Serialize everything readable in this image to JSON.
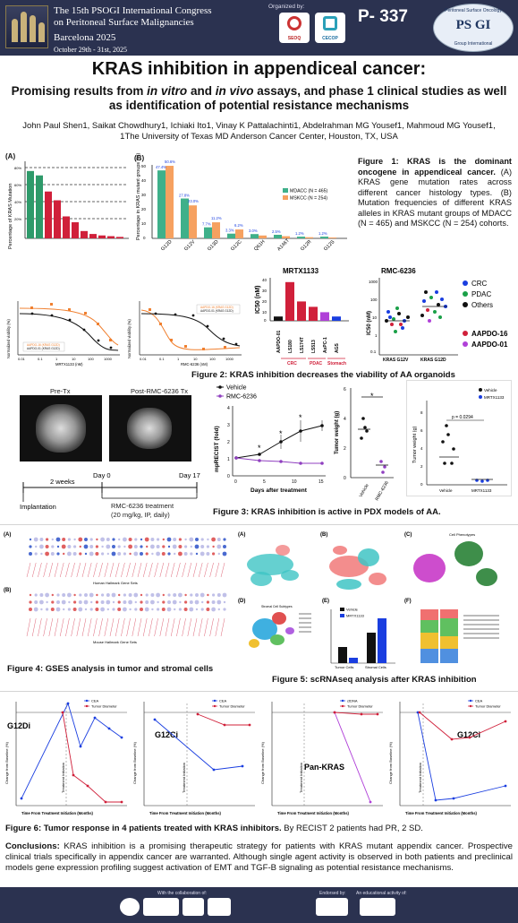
{
  "header": {
    "congress_line1": "The 15th PSOGI International Congress",
    "congress_line2": "on Peritoneal Surface Malignancies",
    "city": "Barcelona 2025",
    "dates": "October 29th - 31st, 2025",
    "organized_by": "Organized by:",
    "org1": "SEOQ",
    "org2": "CECOP",
    "poster_number": "P- 337",
    "psogi_top": "Peritoneal Surface Oncology",
    "psogi_big": "PS GI",
    "psogi_bottom": "Group International"
  },
  "title": "KRAS inhibition in appendiceal cancer:",
  "subtitle": "Promising results from in vitro and in vivo assays, and phase 1 clinical studies as well as identification of potential resistance mechanisms",
  "authors": "John Paul Shen1, Saikat Chowdhury1, Ichiaki Ito1, Vinay K Pattalachinti1, Abdelrahman MG Yousef1, Mahmoud MG Yousef1,",
  "affiliation": "1The University of Texas MD Anderson Cancer Center, Houston, TX, USA",
  "fig1": {
    "panel_a": "(A)",
    "panel_b": "(B)",
    "ylabel_a": "Percentage of KRAS Mutation",
    "ylabel_b": "Percentage in KRAS mutant groups (%)",
    "legend_mdacc": "MDACC (N = 465)",
    "legend_mskcc": "MSKCC (N = 254)",
    "alleles": [
      "G12D",
      "G12V",
      "G13D",
      "G12C",
      "Q61H",
      "A146T",
      "G12R",
      "G12S"
    ],
    "labels_mdacc": [
      "47.4%",
      "27.8%",
      "7.7%",
      "3.3%",
      "3.0%",
      "2.5%",
      "1.2%",
      "1.2%"
    ],
    "labels_mskcc": [
      "50.6%",
      "23.0%",
      "11.2%",
      "6.2%",
      "",
      "",
      "",
      ""
    ],
    "caption_bold": "Figure 1: KRAS is the dominant oncogene in appendiceal cancer.",
    "caption_text": "(A) KRAS gene mutation rates across different cancer histology types. (B) Mutation frequencies of different KRAS alleles in KRAS mutant groups of MDACC (N = 465) and MSKCC (N = 254) cohorts."
  },
  "fig2": {
    "mrtx_title": "MRTX1133",
    "rmc_title": "RMC-6236",
    "ic50_ylabel": "IC50 (nM)",
    "ic50_mrtx_lines": [
      "AAPDO-01",
      "LS180",
      "LS174T",
      "LS513",
      "AsPC-1",
      "AGS"
    ],
    "ic50_groups": [
      "CRC",
      "PDAC",
      "Stomach"
    ],
    "rmc_xlabels": [
      "KRAS G12V",
      "KRAS G12D"
    ],
    "legend_crc": "CRC",
    "legend_pdac": "PDAC",
    "legend_others": "Others",
    "legend_aapdo16": "AAPDO-16",
    "legend_aapdo01": "AAPDO-01",
    "curve_xlabel_1": "MRTX1133 (nM)",
    "curve_xlabel_2": "RMC-6236 (nM)",
    "curve_ylabel": "Normalized viability (%)",
    "caption": "Figure 2: KRAS inhibition decreases the viability of AA organoids"
  },
  "fig3": {
    "pre": "Pre-Tx",
    "post": "Post-RMC-6236 Tx",
    "two_weeks": "2 weeks",
    "day0": "Day 0",
    "day17": "Day 17",
    "implant": "Implantation",
    "treatment": "RMC-6236 treatment",
    "dose": "(20 mg/kg, IP, daily)",
    "legend_vehicle": "Vehicle",
    "legend_rmc": "RMC-6236",
    "ylabel_recist": "mpRECIST (fold)",
    "xlabel_days": "Days after treatment",
    "ylabel_weight": "Tumor weight (g)",
    "pvalue": "p = 0.0294",
    "legend_mrtx": "MRTX1133",
    "caption": "Figure 3: KRAS inhibition is active in PDX models of AA."
  },
  "fig4": {
    "a": "(A)",
    "b": "(B)",
    "xl_a": "Human Hallmark Gene Sets",
    "xl_b": "Mouse Hallmark Gene Sets",
    "caption": "Figure 4: GSES analysis in tumor and stromal cells"
  },
  "fig5": {
    "a": "(A)",
    "b": "(B)",
    "c": "(C)",
    "d": "(D)",
    "e": "(E)",
    "f": "(F)",
    "c_title": "Cell Phenotypes",
    "d_title": "Stromal Cell Subtypes",
    "e_legend1": "Vehicle",
    "e_legend2": "MRTX1133",
    "e_cats": [
      "Tumor Cells",
      "Stromal Cells"
    ],
    "caption": "Figure 5: scRNAseq analysis after KRAS inhibition"
  },
  "fig6": {
    "panels": [
      {
        "label": "G12Di",
        "legend1": "CEA",
        "legend2": "Tumor Diameter"
      },
      {
        "label": "G12Ci",
        "legend1": "CEA",
        "legend2": "Tumor Diameter"
      },
      {
        "label": "Pan-KRAS",
        "legend1": "ctDNA",
        "legend2": "Tumor Diameter"
      },
      {
        "label": "G12Ci",
        "legend1": "CEA",
        "legend2": "Tumor Diameter"
      }
    ],
    "xlabel": "Time From Treatment Initiation (Months)",
    "ylabel": "Change from Baseline (%)",
    "tx_label": "Treatment Initiation",
    "caption_bold": "Figure 6: Tumor response in 4 patients treated with KRAS inhibitors.",
    "caption_text": "By RECIST 2 patients had PR, 2 SD."
  },
  "conclusions": {
    "head": "Conclusions:",
    "text": "KRAS inhibition is a promising therapeutic strategy for patients with KRAS mutant appendix cancer. Prospective clinical trials specifically in appendix cancer are warranted. Although single agent activity is observed in both patients and preclinical models gene expression profiling suggest activation of EMT and TGF-B signaling as potential resistance mechanisms."
  },
  "footer": {
    "collab": "With the collaboration of:",
    "endorsed": "Endorsed by:",
    "edu": "An educational activity of:"
  },
  "colors": {
    "navy": "#2b3250",
    "green": "#2e9a6a",
    "red": "#d0203a",
    "blue": "#1a3ee0"
  }
}
